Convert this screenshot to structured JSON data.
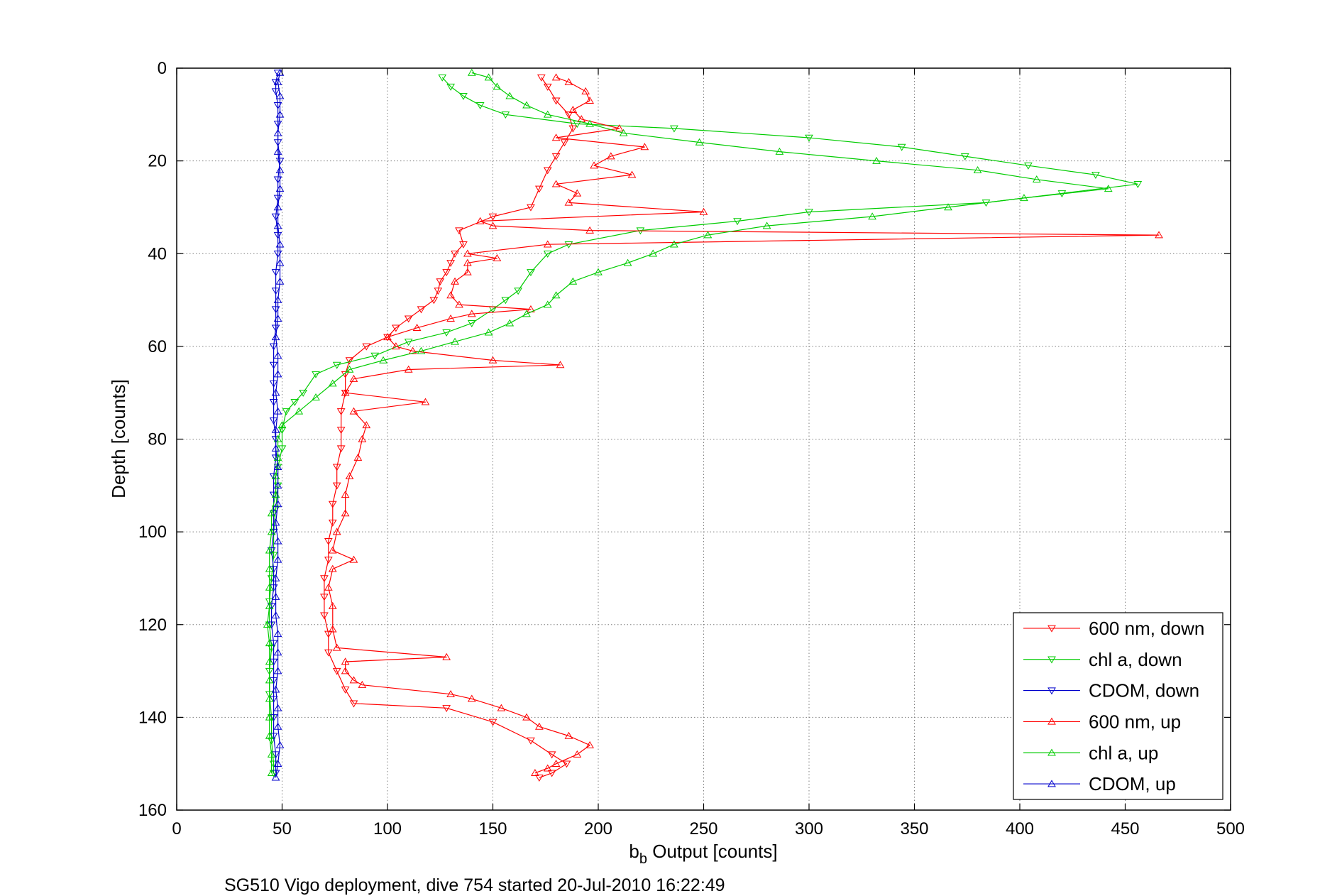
{
  "chart_data": {
    "type": "line",
    "xlabel_main": "b",
    "xlabel_sub": "b",
    "xlabel_rest": " Output [counts]",
    "ylabel": "Depth [counts]",
    "caption": "SG510 Vigo deployment, dive 754 started 20-Jul-2010 16:22:49",
    "xlim": [
      0,
      500
    ],
    "ylim": [
      0,
      160
    ],
    "y_reversed": true,
    "grid": true,
    "legend_position": "bottom-right",
    "x_ticks": [
      0,
      50,
      100,
      150,
      200,
      250,
      300,
      350,
      400,
      450,
      500
    ],
    "y_ticks": [
      0,
      20,
      40,
      60,
      80,
      100,
      120,
      140,
      160
    ],
    "series": [
      {
        "name": "600 nm, down",
        "color": "#ff0000",
        "marker": "triangle-down",
        "points": [
          [
            173,
            2
          ],
          [
            176,
            4
          ],
          [
            180,
            7
          ],
          [
            186,
            10
          ],
          [
            188,
            13
          ],
          [
            184,
            16
          ],
          [
            180,
            19
          ],
          [
            176,
            22
          ],
          [
            172,
            26
          ],
          [
            168,
            30
          ],
          [
            150,
            32
          ],
          [
            134,
            35
          ],
          [
            136,
            38
          ],
          [
            132,
            40
          ],
          [
            130,
            42
          ],
          [
            128,
            44
          ],
          [
            125,
            46
          ],
          [
            124,
            48
          ],
          [
            122,
            50
          ],
          [
            116,
            52
          ],
          [
            110,
            54
          ],
          [
            104,
            56
          ],
          [
            100,
            58
          ],
          [
            90,
            60
          ],
          [
            82,
            63
          ],
          [
            80,
            66
          ],
          [
            80,
            70
          ],
          [
            78,
            74
          ],
          [
            78,
            78
          ],
          [
            78,
            82
          ],
          [
            76,
            86
          ],
          [
            76,
            90
          ],
          [
            74,
            94
          ],
          [
            74,
            98
          ],
          [
            72,
            102
          ],
          [
            72,
            106
          ],
          [
            70,
            110
          ],
          [
            70,
            114
          ],
          [
            70,
            118
          ],
          [
            72,
            122
          ],
          [
            72,
            126
          ],
          [
            76,
            130
          ],
          [
            80,
            134
          ],
          [
            84,
            137
          ],
          [
            128,
            138
          ],
          [
            150,
            141
          ],
          [
            168,
            145
          ],
          [
            178,
            148
          ],
          [
            185,
            150
          ],
          [
            178,
            152
          ],
          [
            172,
            153
          ]
        ]
      },
      {
        "name": "chl a, down",
        "color": "#00cc00",
        "marker": "triangle-down",
        "points": [
          [
            126,
            2
          ],
          [
            130,
            4
          ],
          [
            136,
            6
          ],
          [
            144,
            8
          ],
          [
            156,
            10
          ],
          [
            190,
            12
          ],
          [
            236,
            13
          ],
          [
            300,
            15
          ],
          [
            344,
            17
          ],
          [
            374,
            19
          ],
          [
            404,
            21
          ],
          [
            436,
            23
          ],
          [
            456,
            25
          ],
          [
            420,
            27
          ],
          [
            384,
            29
          ],
          [
            300,
            31
          ],
          [
            266,
            33
          ],
          [
            220,
            35
          ],
          [
            186,
            38
          ],
          [
            176,
            40
          ],
          [
            168,
            44
          ],
          [
            162,
            48
          ],
          [
            156,
            50
          ],
          [
            150,
            52
          ],
          [
            140,
            55
          ],
          [
            128,
            57
          ],
          [
            110,
            59
          ],
          [
            94,
            62
          ],
          [
            76,
            64
          ],
          [
            66,
            66
          ],
          [
            60,
            70
          ],
          [
            56,
            72
          ],
          [
            52,
            74
          ],
          [
            50,
            78
          ],
          [
            50,
            82
          ],
          [
            48,
            86
          ],
          [
            48,
            90
          ],
          [
            47,
            95
          ],
          [
            46,
            100
          ],
          [
            46,
            105
          ],
          [
            45,
            110
          ],
          [
            44,
            115
          ],
          [
            44,
            120
          ],
          [
            45,
            125
          ],
          [
            44,
            130
          ],
          [
            44,
            135
          ],
          [
            45,
            140
          ],
          [
            45,
            145
          ],
          [
            46,
            150
          ],
          [
            46,
            152
          ]
        ]
      },
      {
        "name": "CDOM, down",
        "color": "#0000cc",
        "marker": "triangle-down",
        "points": [
          [
            48,
            1
          ],
          [
            47,
            3
          ],
          [
            47,
            5
          ],
          [
            48,
            8
          ],
          [
            48,
            12
          ],
          [
            48,
            16
          ],
          [
            49,
            20
          ],
          [
            48,
            24
          ],
          [
            48,
            28
          ],
          [
            47,
            32
          ],
          [
            48,
            36
          ],
          [
            48,
            40
          ],
          [
            47,
            44
          ],
          [
            47,
            48
          ],
          [
            47,
            52
          ],
          [
            47,
            56
          ],
          [
            46,
            60
          ],
          [
            46,
            64
          ],
          [
            46,
            68
          ],
          [
            46,
            72
          ],
          [
            46,
            76
          ],
          [
            47,
            80
          ],
          [
            47,
            84
          ],
          [
            46,
            88
          ],
          [
            46,
            92
          ],
          [
            46,
            96
          ],
          [
            46,
            100
          ],
          [
            45,
            104
          ],
          [
            46,
            108
          ],
          [
            46,
            112
          ],
          [
            45,
            116
          ],
          [
            45,
            120
          ],
          [
            46,
            124
          ],
          [
            46,
            128
          ],
          [
            46,
            132
          ],
          [
            46,
            136
          ],
          [
            46,
            140
          ],
          [
            46,
            144
          ],
          [
            47,
            148
          ],
          [
            47,
            152
          ]
        ]
      },
      {
        "name": "600 nm, up",
        "color": "#ff0000",
        "marker": "triangle-up",
        "points": [
          [
            170,
            152
          ],
          [
            176,
            151
          ],
          [
            180,
            150
          ],
          [
            190,
            148
          ],
          [
            196,
            146
          ],
          [
            186,
            144
          ],
          [
            172,
            142
          ],
          [
            166,
            140
          ],
          [
            154,
            138
          ],
          [
            140,
            136
          ],
          [
            130,
            135
          ],
          [
            88,
            133
          ],
          [
            84,
            132
          ],
          [
            80,
            130
          ],
          [
            80,
            128
          ],
          [
            128,
            127
          ],
          [
            76,
            125
          ],
          [
            74,
            121
          ],
          [
            74,
            116
          ],
          [
            72,
            112
          ],
          [
            74,
            108
          ],
          [
            84,
            106
          ],
          [
            74,
            104
          ],
          [
            76,
            100
          ],
          [
            80,
            96
          ],
          [
            80,
            92
          ],
          [
            82,
            88
          ],
          [
            86,
            84
          ],
          [
            88,
            80
          ],
          [
            90,
            77
          ],
          [
            84,
            74
          ],
          [
            118,
            72
          ],
          [
            80,
            70
          ],
          [
            84,
            67
          ],
          [
            110,
            65
          ],
          [
            182,
            64
          ],
          [
            150,
            63
          ],
          [
            112,
            61
          ],
          [
            104,
            60
          ],
          [
            100,
            58
          ],
          [
            114,
            56
          ],
          [
            130,
            54
          ],
          [
            140,
            53
          ],
          [
            168,
            52
          ],
          [
            134,
            51
          ],
          [
            130,
            49
          ],
          [
            132,
            46
          ],
          [
            138,
            44
          ],
          [
            138,
            42
          ],
          [
            152,
            41
          ],
          [
            138,
            40
          ],
          [
            176,
            38
          ],
          [
            466,
            36
          ],
          [
            196,
            35
          ],
          [
            150,
            34
          ],
          [
            144,
            33
          ],
          [
            250,
            31
          ],
          [
            186,
            29
          ],
          [
            190,
            27
          ],
          [
            180,
            25
          ],
          [
            216,
            23
          ],
          [
            198,
            21
          ],
          [
            206,
            19
          ],
          [
            222,
            17
          ],
          [
            180,
            15
          ],
          [
            210,
            13
          ],
          [
            192,
            11
          ],
          [
            188,
            9
          ],
          [
            196,
            7
          ],
          [
            194,
            5
          ],
          [
            186,
            3
          ],
          [
            180,
            2
          ]
        ]
      },
      {
        "name": "chl a, up",
        "color": "#00cc00",
        "marker": "triangle-up",
        "points": [
          [
            45,
            152
          ],
          [
            45,
            148
          ],
          [
            44,
            144
          ],
          [
            44,
            140
          ],
          [
            44,
            136
          ],
          [
            44,
            132
          ],
          [
            44,
            128
          ],
          [
            44,
            124
          ],
          [
            43,
            120
          ],
          [
            44,
            116
          ],
          [
            44,
            112
          ],
          [
            44,
            108
          ],
          [
            44,
            104
          ],
          [
            45,
            100
          ],
          [
            45,
            96
          ],
          [
            47,
            92
          ],
          [
            47,
            88
          ],
          [
            48,
            84
          ],
          [
            48,
            80
          ],
          [
            50,
            77
          ],
          [
            58,
            74
          ],
          [
            66,
            71
          ],
          [
            74,
            68
          ],
          [
            82,
            65
          ],
          [
            98,
            63
          ],
          [
            116,
            61
          ],
          [
            132,
            59
          ],
          [
            148,
            57
          ],
          [
            158,
            55
          ],
          [
            166,
            53
          ],
          [
            176,
            51
          ],
          [
            180,
            49
          ],
          [
            188,
            46
          ],
          [
            200,
            44
          ],
          [
            214,
            42
          ],
          [
            226,
            40
          ],
          [
            236,
            38
          ],
          [
            252,
            36
          ],
          [
            280,
            34
          ],
          [
            330,
            32
          ],
          [
            366,
            30
          ],
          [
            402,
            28
          ],
          [
            442,
            26
          ],
          [
            408,
            24
          ],
          [
            380,
            22
          ],
          [
            332,
            20
          ],
          [
            286,
            18
          ],
          [
            248,
            16
          ],
          [
            212,
            14
          ],
          [
            196,
            12
          ],
          [
            176,
            10
          ],
          [
            166,
            8
          ],
          [
            158,
            6
          ],
          [
            152,
            4
          ],
          [
            148,
            2
          ],
          [
            140,
            1
          ]
        ]
      },
      {
        "name": "CDOM, up",
        "color": "#0000cc",
        "marker": "triangle-up",
        "points": [
          [
            47,
            153
          ],
          [
            48,
            150
          ],
          [
            49,
            146
          ],
          [
            48,
            142
          ],
          [
            48,
            138
          ],
          [
            47,
            134
          ],
          [
            48,
            130
          ],
          [
            48,
            126
          ],
          [
            48,
            122
          ],
          [
            47,
            118
          ],
          [
            47,
            114
          ],
          [
            47,
            110
          ],
          [
            48,
            106
          ],
          [
            48,
            102
          ],
          [
            47,
            98
          ],
          [
            48,
            94
          ],
          [
            48,
            90
          ],
          [
            48,
            86
          ],
          [
            47,
            82
          ],
          [
            47,
            78
          ],
          [
            48,
            74
          ],
          [
            47,
            70
          ],
          [
            48,
            66
          ],
          [
            48,
            62
          ],
          [
            47,
            58
          ],
          [
            48,
            54
          ],
          [
            48,
            50
          ],
          [
            49,
            46
          ],
          [
            49,
            42
          ],
          [
            49,
            38
          ],
          [
            48,
            34
          ],
          [
            48,
            30
          ],
          [
            49,
            26
          ],
          [
            49,
            22
          ],
          [
            48,
            18
          ],
          [
            48,
            14
          ],
          [
            49,
            10
          ],
          [
            49,
            6
          ],
          [
            48,
            3
          ],
          [
            49,
            1
          ]
        ]
      }
    ]
  }
}
